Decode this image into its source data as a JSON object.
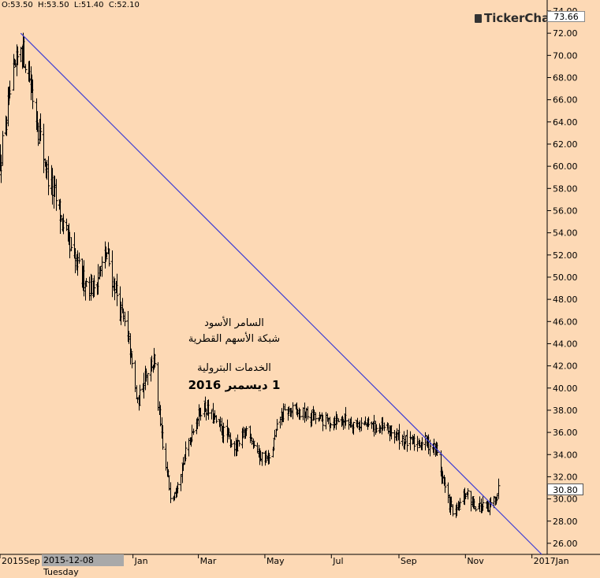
{
  "header": {
    "ohlc_readout": "O:53.50  H:53.50  L:51.40  C:52.10"
  },
  "logo": {
    "text": "TickerChart"
  },
  "markers": {
    "top_price": "73.66",
    "last_price": "30.80",
    "cursor_date": "2015-12-08 Tuesday"
  },
  "annotations": {
    "line1": "السامر الأسود",
    "line2": "شبكة الأسهم القطرية",
    "line3": "الخدمات البترولية",
    "line4": "1 ديسمبر 2016"
  },
  "colors": {
    "background": "#fdd9b5",
    "bars": "#000000",
    "trendline": "#3b3bd6",
    "grid_tick": "#000000"
  },
  "chart_data": {
    "type": "ohlc",
    "y_axis": {
      "range": [
        25,
        74
      ],
      "ticks": [
        "26.00",
        "28.00",
        "30.00",
        "32.00",
        "34.00",
        "36.00",
        "38.00",
        "40.00",
        "42.00",
        "44.00",
        "46.00",
        "48.00",
        "50.00",
        "52.00",
        "54.00",
        "56.00",
        "58.00",
        "60.00",
        "62.00",
        "64.00",
        "66.00",
        "68.00",
        "70.00",
        "72.00",
        "74.00"
      ]
    },
    "x_axis": {
      "range": [
        "2015-09-01",
        "2017-01-15"
      ],
      "ticks": [
        {
          "label": "2015Sep",
          "date": "2015-09-01"
        },
        {
          "label": "Jan",
          "date": "2016-01-01"
        },
        {
          "label": "Mar",
          "date": "2016-03-01"
        },
        {
          "label": "May",
          "date": "2016-05-01"
        },
        {
          "label": "Jul",
          "date": "2016-07-01"
        },
        {
          "label": "Sep",
          "date": "2016-09-01"
        },
        {
          "label": "Nov",
          "date": "2016-11-01"
        },
        {
          "label": "2017Jan",
          "date": "2017-01-01"
        }
      ]
    },
    "trendline": {
      "start": {
        "date": "2015-09-20",
        "value": 72.0
      },
      "end": {
        "date": "2017-01-10",
        "value": 25.0
      }
    },
    "series_anchors": [
      {
        "date": "2015-09-01",
        "close": 60.5
      },
      {
        "date": "2015-09-10",
        "close": 66.5
      },
      {
        "date": "2015-09-20",
        "close": 71.0
      },
      {
        "date": "2015-09-28",
        "close": 68.0
      },
      {
        "date": "2015-10-05",
        "close": 64.0
      },
      {
        "date": "2015-10-15",
        "close": 59.0
      },
      {
        "date": "2015-10-25",
        "close": 56.0
      },
      {
        "date": "2015-11-05",
        "close": 52.0
      },
      {
        "date": "2015-11-15",
        "close": 50.0
      },
      {
        "date": "2015-11-25",
        "close": 49.0
      },
      {
        "date": "2015-12-08",
        "close": 52.1
      },
      {
        "date": "2015-12-18",
        "close": 48.0
      },
      {
        "date": "2015-12-28",
        "close": 44.0
      },
      {
        "date": "2016-01-05",
        "close": 38.5
      },
      {
        "date": "2016-01-12",
        "close": 41.5
      },
      {
        "date": "2016-01-20",
        "close": 42.5
      },
      {
        "date": "2016-01-28",
        "close": 34.5
      },
      {
        "date": "2016-02-05",
        "close": 30.0
      },
      {
        "date": "2016-02-15",
        "close": 33.0
      },
      {
        "date": "2016-02-25",
        "close": 36.5
      },
      {
        "date": "2016-03-05",
        "close": 38.5
      },
      {
        "date": "2016-03-20",
        "close": 36.5
      },
      {
        "date": "2016-04-05",
        "close": 34.5
      },
      {
        "date": "2016-04-15",
        "close": 36.5
      },
      {
        "date": "2016-04-25",
        "close": 34.0
      },
      {
        "date": "2016-05-05",
        "close": 33.5
      },
      {
        "date": "2016-05-15",
        "close": 37.5
      },
      {
        "date": "2016-05-25",
        "close": 38.0
      },
      {
        "date": "2016-06-10",
        "close": 37.5
      },
      {
        "date": "2016-06-25",
        "close": 37.0
      },
      {
        "date": "2016-07-10",
        "close": 37.2
      },
      {
        "date": "2016-07-25",
        "close": 36.8
      },
      {
        "date": "2016-08-10",
        "close": 36.5
      },
      {
        "date": "2016-08-25",
        "close": 36.0
      },
      {
        "date": "2016-09-10",
        "close": 35.0
      },
      {
        "date": "2016-09-25",
        "close": 35.2
      },
      {
        "date": "2016-10-05",
        "close": 34.5
      },
      {
        "date": "2016-10-15",
        "close": 30.0
      },
      {
        "date": "2016-10-22",
        "close": 28.5
      },
      {
        "date": "2016-11-01",
        "close": 30.5
      },
      {
        "date": "2016-11-10",
        "close": 29.5
      },
      {
        "date": "2016-11-22",
        "close": 29.0
      },
      {
        "date": "2016-12-01",
        "close": 30.8
      }
    ]
  }
}
